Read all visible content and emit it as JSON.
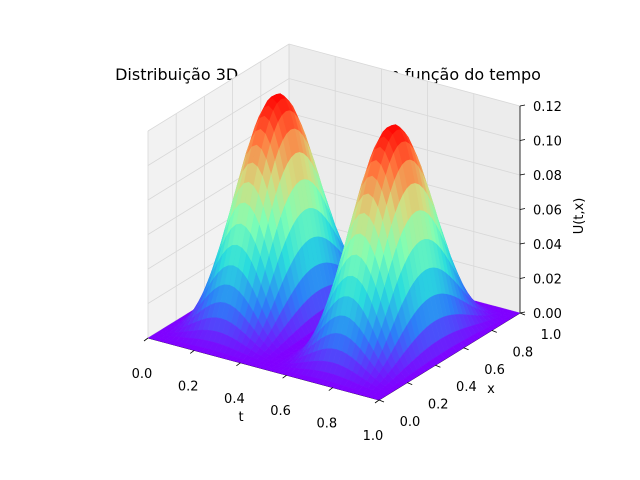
{
  "chart_data": {
    "type": "surface3d",
    "title": "Distribuição 3D da temperatura em função do tempo",
    "xlabel": "t",
    "ylabel": "x",
    "zlabel": "U(t,x)",
    "t_range": [
      0,
      1
    ],
    "x_range": [
      0,
      1
    ],
    "z_range": [
      0,
      0.12
    ],
    "t_ticks": [
      "0.0",
      "0.2",
      "0.4",
      "0.6",
      "0.8",
      "1.0"
    ],
    "x_ticks": [
      "0.0",
      "0.2",
      "0.4",
      "0.6",
      "0.8",
      "1.0"
    ],
    "z_ticks": [
      "0.00",
      "0.02",
      "0.04",
      "0.06",
      "0.08",
      "0.10",
      "0.12"
    ],
    "colormap": "rainbow",
    "colormap_stops": [
      "#8000ff",
      "#2c7ef8",
      "#2adddd",
      "#80ffb4",
      "#d4dd80",
      "#ff7e41",
      "#ff0000"
    ],
    "grid": true,
    "peaks": [
      {
        "t": 0.25,
        "x": 0.5,
        "U": 0.125
      },
      {
        "t": 0.75,
        "x": 0.5,
        "U": 0.125
      }
    ],
    "surface_samples": [
      {
        "t": 0.0,
        "x": 0.5,
        "U": 0.0
      },
      {
        "t": 0.25,
        "x": 0.5,
        "U": 0.125
      },
      {
        "t": 0.5,
        "x": 0.5,
        "U": 0.0
      },
      {
        "t": 0.75,
        "x": 0.5,
        "U": 0.125
      },
      {
        "t": 1.0,
        "x": 0.5,
        "U": 0.0
      },
      {
        "t": 0.25,
        "x": 0.0,
        "U": 0.0
      },
      {
        "t": 0.25,
        "x": 1.0,
        "U": 0.0
      }
    ]
  }
}
